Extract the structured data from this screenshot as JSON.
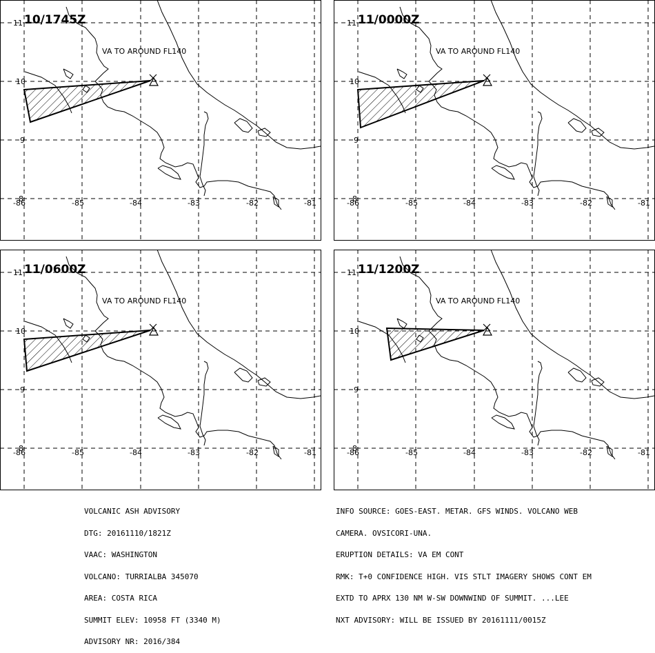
{
  "panels": [
    {
      "time": "10/1745Z",
      "label": "VA TO AROUND FL140",
      "variant": "a"
    },
    {
      "time": "11/0000Z",
      "label": "VA TO AROUND FL140",
      "variant": "b"
    },
    {
      "time": "11/0600Z",
      "label": "VA TO AROUND FL140",
      "variant": "c"
    },
    {
      "time": "11/1200Z",
      "label": "VA TO AROUND FL140",
      "variant": "d"
    }
  ],
  "lat_labels": [
    "11",
    "10",
    "9",
    "8"
  ],
  "lon_labels": [
    "-86",
    "-85",
    "-84",
    "-83",
    "-82",
    "-81"
  ],
  "info_left": [
    "VOLCANIC ASH ADVISORY",
    "DTG: 20161110/1821Z",
    "VAAC: WASHINGTON",
    "VOLCANO: TURRIALBA 345070",
    "AREA: COSTA RICA",
    "SUMMIT ELEV: 10958 FT (3340 M)",
    "ADVISORY NR: 2016/384"
  ],
  "info_right": [
    "INFO SOURCE: GOES-EAST. METAR. GFS WINDS. VOLCANO WEB",
    "CAMERA. OVSICORI-UNA.",
    "ERUPTION DETAILS: VA EM CONT",
    "RMK: T+0 CONFIDENCE HIGH. VIS STLT IMAGERY SHOWS CONT EM",
    "EXTD TO APRX 130 NM W-SW DOWNWIND OF SUMMIT. ...LEE",
    "NXT ADVISORY: WILL BE ISSUED BY 20161111/0015Z"
  ],
  "colors": {
    "line": "#000000",
    "background": "#ffffff"
  },
  "icons": {
    "volcano": "volcano-triangle-icon"
  }
}
